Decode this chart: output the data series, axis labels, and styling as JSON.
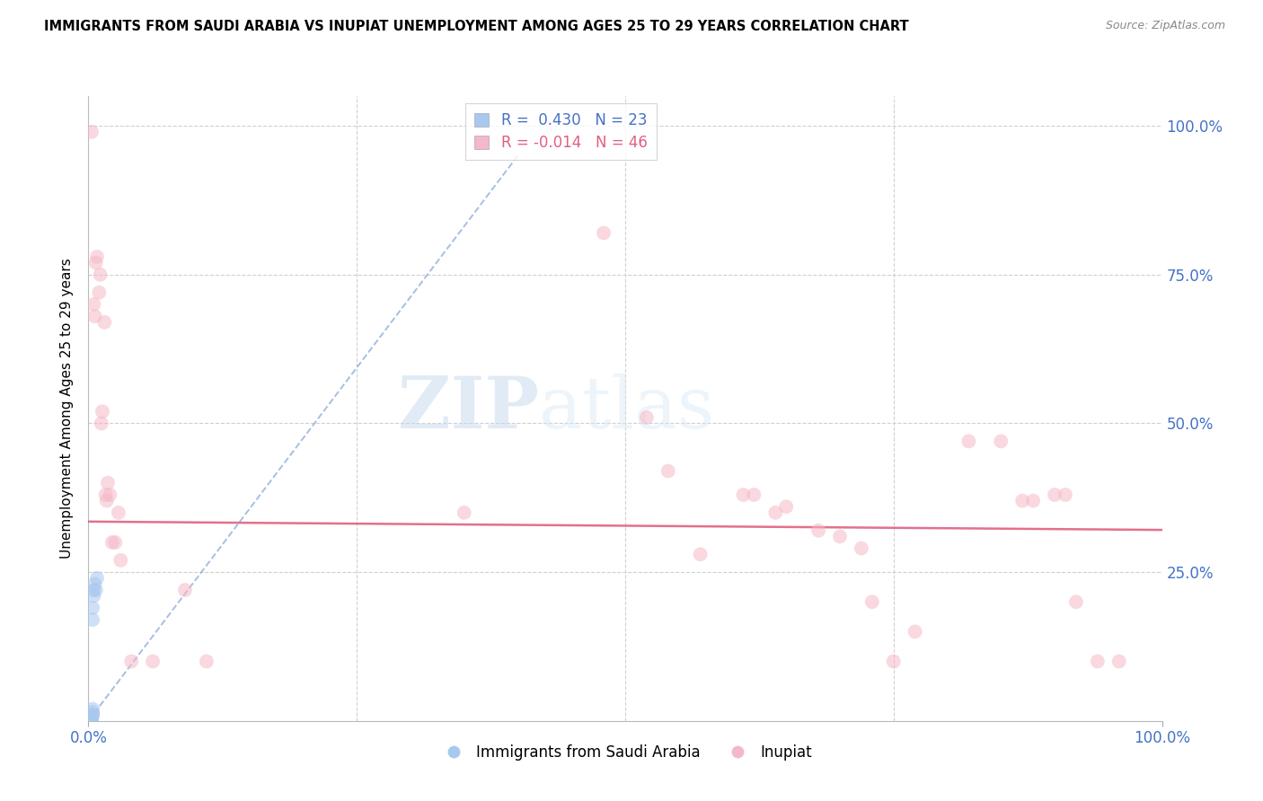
{
  "title": "IMMIGRANTS FROM SAUDI ARABIA VS INUPIAT UNEMPLOYMENT AMONG AGES 25 TO 29 YEARS CORRELATION CHART",
  "source": "Source: ZipAtlas.com",
  "ylabel": "Unemployment Among Ages 25 to 29 years",
  "legend_blue_r": " 0.430",
  "legend_blue_n": "23",
  "legend_pink_r": "-0.014",
  "legend_pink_n": "46",
  "legend_label_blue": "Immigrants from Saudi Arabia",
  "legend_label_pink": "Inupiat",
  "blue_scatter_x": [
    0.002,
    0.002,
    0.002,
    0.003,
    0.003,
    0.003,
    0.003,
    0.003,
    0.003,
    0.003,
    0.003,
    0.003,
    0.004,
    0.004,
    0.004,
    0.004,
    0.004,
    0.004,
    0.005,
    0.005,
    0.006,
    0.007,
    0.008
  ],
  "blue_scatter_y": [
    0.0,
    0.0,
    0.0,
    0.0,
    0.0,
    0.0,
    0.0,
    0.0,
    0.0,
    0.0,
    0.005,
    0.01,
    0.01,
    0.01,
    0.015,
    0.02,
    0.17,
    0.19,
    0.21,
    0.22,
    0.23,
    0.22,
    0.24
  ],
  "pink_scatter_x": [
    0.003,
    0.005,
    0.006,
    0.007,
    0.008,
    0.01,
    0.011,
    0.012,
    0.013,
    0.015,
    0.016,
    0.017,
    0.018,
    0.02,
    0.022,
    0.025,
    0.028,
    0.03,
    0.04,
    0.06,
    0.09,
    0.11,
    0.35,
    0.48,
    0.52,
    0.54,
    0.57,
    0.61,
    0.62,
    0.64,
    0.65,
    0.68,
    0.7,
    0.72,
    0.73,
    0.75,
    0.77,
    0.82,
    0.85,
    0.87,
    0.88,
    0.9,
    0.91,
    0.92,
    0.94,
    0.96
  ],
  "pink_scatter_y": [
    0.99,
    0.7,
    0.68,
    0.77,
    0.78,
    0.72,
    0.75,
    0.5,
    0.52,
    0.67,
    0.38,
    0.37,
    0.4,
    0.38,
    0.3,
    0.3,
    0.35,
    0.27,
    0.1,
    0.1,
    0.22,
    0.1,
    0.35,
    0.82,
    0.51,
    0.42,
    0.28,
    0.38,
    0.38,
    0.35,
    0.36,
    0.32,
    0.31,
    0.29,
    0.2,
    0.1,
    0.15,
    0.47,
    0.47,
    0.37,
    0.37,
    0.38,
    0.38,
    0.2,
    0.1,
    0.1
  ],
  "blue_trendline_x": [
    0.0,
    0.4
  ],
  "blue_trendline_y": [
    0.0,
    0.95
  ],
  "pink_trendline_x": [
    0.0,
    1.0
  ],
  "pink_trendline_y": [
    0.335,
    0.321
  ],
  "background_color": "#ffffff",
  "grid_color": "#d0d0d0",
  "blue_color": "#a8c8f0",
  "pink_color": "#f5b8c8",
  "blue_line_color": "#88aad8",
  "pink_line_color": "#e06080",
  "scatter_size": 130,
  "scatter_alpha": 0.55,
  "title_fontsize": 10.5,
  "axis_tick_color": "#4472c4",
  "source_color": "#888888",
  "watermark_zip": "ZIP",
  "watermark_atlas": "atlas",
  "xlim": [
    0.0,
    1.0
  ],
  "ylim": [
    0.0,
    1.05
  ],
  "ytick_values": [
    0.25,
    0.5,
    0.75,
    1.0
  ],
  "ytick_labels": [
    "25.0%",
    "50.0%",
    "75.0%",
    "100.0%"
  ],
  "xtick_values": [
    0.0,
    1.0
  ],
  "xtick_labels": [
    "0.0%",
    "100.0%"
  ]
}
